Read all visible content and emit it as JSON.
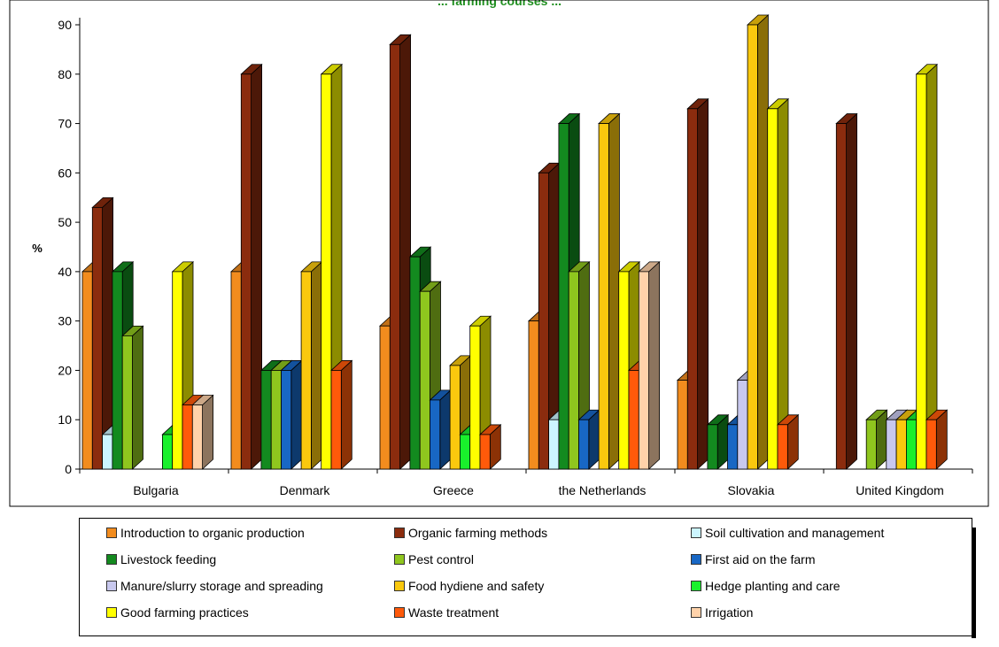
{
  "chart_data": {
    "type": "bar",
    "title": "... farming courses ...",
    "ylabel": "%",
    "xlabel": "",
    "ylim": [
      0,
      90
    ],
    "yticks": [
      0,
      10,
      20,
      30,
      40,
      50,
      60,
      70,
      80,
      90
    ],
    "grid": false,
    "legend_position": "bottom",
    "categories": [
      "Bulgaria",
      "Denmark",
      "Greece",
      "the Netherlands",
      "Slovakia",
      "United Kingdom"
    ],
    "series": [
      {
        "name": "Introduction to organic production",
        "color": "#f28c1e",
        "values": [
          40,
          40,
          29,
          30,
          18,
          0
        ]
      },
      {
        "name": "Organic farming methods",
        "color": "#8b2c0e",
        "values": [
          53,
          80,
          86,
          60,
          73,
          70
        ]
      },
      {
        "name": "Soil cultivation and management",
        "color": "#ccf5ff",
        "values": [
          7,
          0,
          0,
          10,
          0,
          0
        ]
      },
      {
        "name": "Livestock feeding",
        "color": "#138a1f",
        "values": [
          40,
          20,
          43,
          70,
          9,
          0
        ]
      },
      {
        "name": "Pest control",
        "color": "#8fc61e",
        "values": [
          27,
          20,
          36,
          40,
          0,
          10
        ]
      },
      {
        "name": "First aid on the farm",
        "color": "#1867c4",
        "values": [
          0,
          20,
          14,
          10,
          9,
          0
        ]
      },
      {
        "name": "Manure/slurry storage and spreading",
        "color": "#c8c8ee",
        "values": [
          0,
          0,
          0,
          0,
          18,
          10
        ]
      },
      {
        "name": "Food hydiene and safety",
        "color": "#fac80e",
        "values": [
          0,
          40,
          21,
          70,
          90,
          10
        ]
      },
      {
        "name": "Hedge planting and care",
        "color": "#19f02c",
        "values": [
          7,
          0,
          7,
          0,
          0,
          10
        ]
      },
      {
        "name": "Good farming practices",
        "color": "#ffff00",
        "values": [
          40,
          80,
          29,
          40,
          73,
          80
        ]
      },
      {
        "name": "Waste treatment",
        "color": "#ff5a0a",
        "values": [
          13,
          20,
          7,
          20,
          9,
          10
        ]
      },
      {
        "name": "Irrigation",
        "color": "#ffd2aa",
        "values": [
          13,
          0,
          0,
          40,
          0,
          0
        ]
      }
    ]
  }
}
